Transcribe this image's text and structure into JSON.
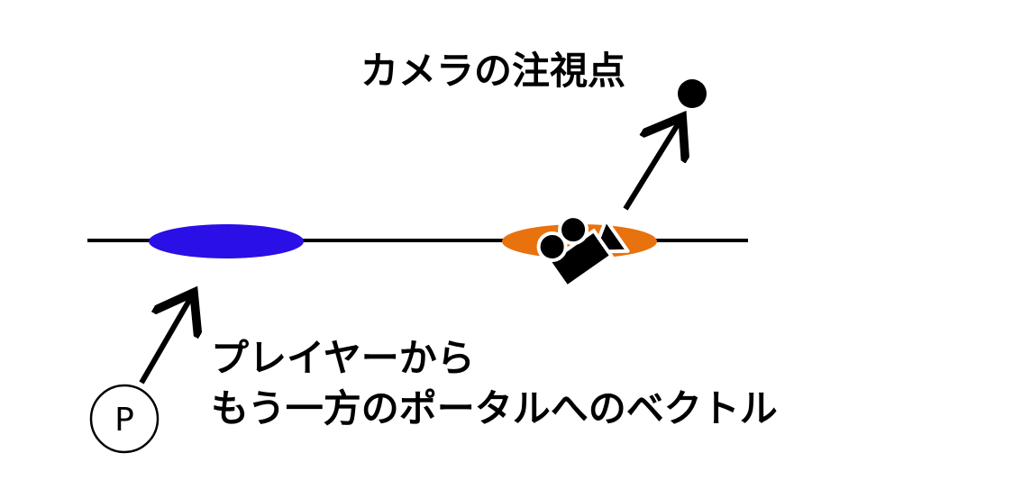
{
  "labels": {
    "camera_target": "カメラの注視点",
    "vector_line1": "プレイヤーから",
    "vector_line2": "もう一方のポータルへのベクトル",
    "player": "P"
  },
  "colors": {
    "portal_entry": "#2a0fe6",
    "portal_exit": "#e8720d",
    "line": "#000000",
    "background": "#ffffff"
  },
  "icons": [
    "camera-icon",
    "target-point-icon",
    "player-icon"
  ]
}
